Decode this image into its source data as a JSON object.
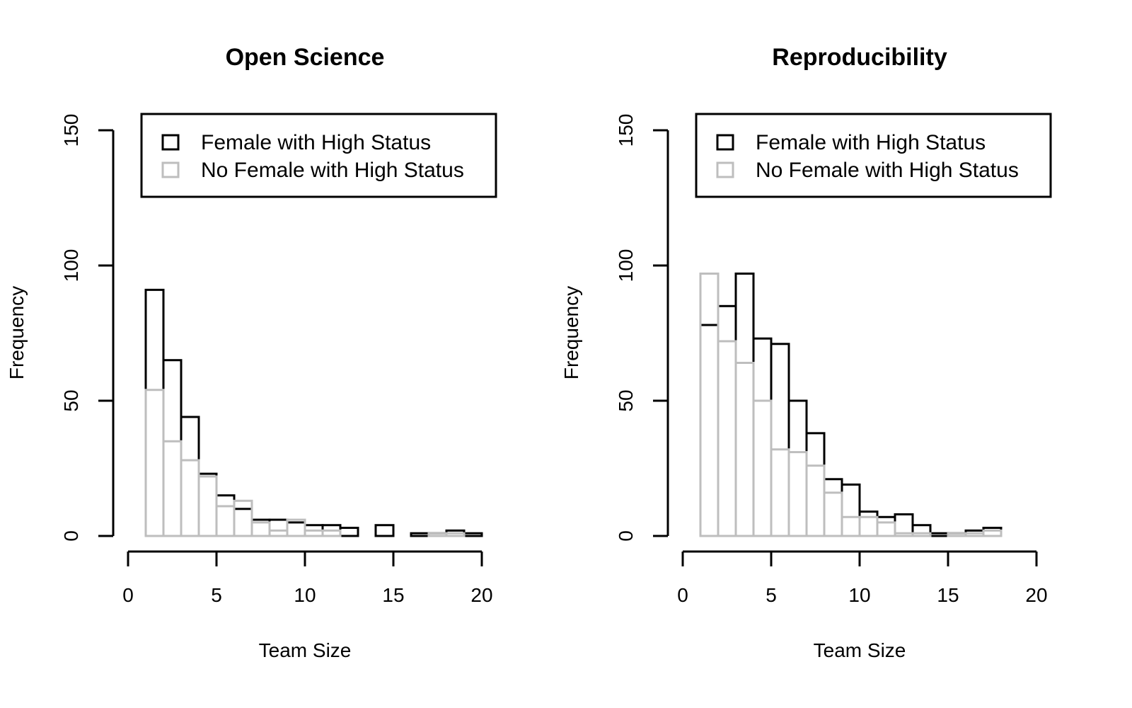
{
  "chart_data": [
    {
      "type": "bar",
      "subtype": "overlaid-histogram",
      "title": "Open Science",
      "xlabel": "Team Size",
      "ylabel": "Frequency",
      "xlim": [
        0,
        20
      ],
      "ylim": [
        0,
        150
      ],
      "x_ticks": [
        0,
        5,
        10,
        15,
        20
      ],
      "y_ticks": [
        0,
        50,
        100,
        150
      ],
      "grid": false,
      "legend_position": "top-right",
      "bin_edges": [
        1,
        2,
        3,
        4,
        5,
        6,
        7,
        8,
        9,
        10,
        11,
        12,
        13,
        14,
        15,
        16,
        17,
        18,
        19,
        20
      ],
      "series": [
        {
          "name": "Female with High Status",
          "color": "#000000",
          "values": [
            91,
            65,
            44,
            23,
            15,
            10,
            6,
            6,
            5,
            4,
            4,
            3,
            0,
            4,
            0,
            1,
            1,
            2,
            1
          ]
        },
        {
          "name": "No Female with High Status",
          "color": "#bebebe",
          "values": [
            54,
            35,
            28,
            22,
            11,
            13,
            5,
            2,
            6,
            2,
            2,
            0,
            0,
            0,
            0,
            0,
            1,
            1,
            0
          ]
        }
      ]
    },
    {
      "type": "bar",
      "subtype": "overlaid-histogram",
      "title": "Reproducibility",
      "xlabel": "Team Size",
      "ylabel": "Frequency",
      "xlim": [
        0,
        20
      ],
      "ylim": [
        0,
        150
      ],
      "x_ticks": [
        0,
        5,
        10,
        15,
        20
      ],
      "y_ticks": [
        0,
        50,
        100,
        150
      ],
      "grid": false,
      "legend_position": "top-right",
      "bin_edges": [
        1,
        2,
        3,
        4,
        5,
        6,
        7,
        8,
        9,
        10,
        11,
        12,
        13,
        14,
        15,
        16,
        17,
        18,
        19,
        20
      ],
      "series": [
        {
          "name": "Female with High Status",
          "color": "#000000",
          "values": [
            78,
            85,
            97,
            73,
            71,
            50,
            38,
            21,
            19,
            9,
            7,
            8,
            4,
            1,
            1,
            2,
            3,
            0,
            0
          ]
        },
        {
          "name": "No Female with High Status",
          "color": "#bebebe",
          "values": [
            97,
            72,
            64,
            50,
            32,
            31,
            26,
            16,
            7,
            7,
            5,
            1,
            1,
            0,
            1,
            1,
            2,
            0,
            0
          ]
        }
      ]
    }
  ]
}
